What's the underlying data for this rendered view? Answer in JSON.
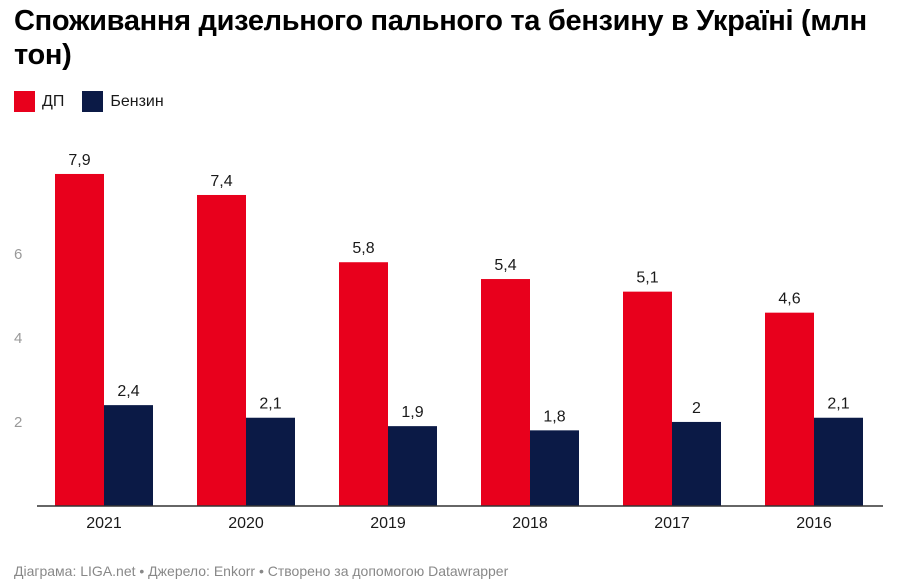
{
  "footer": "Діаграма: LIGA.net • Джерело: Enkorr • Створено за допомогою Datawrapper",
  "colors": {
    "diesel": "#e8001c",
    "petrol": "#0b1a46",
    "tick": "#999999",
    "axis": "#333333"
  },
  "chart_data": {
    "type": "bar",
    "title": "Споживання дизельного пального та бензину в Україні (млн тон)",
    "xlabel": "",
    "ylabel": "",
    "categories": [
      "2021",
      "2020",
      "2019",
      "2018",
      "2017",
      "2016"
    ],
    "series": [
      {
        "name": "ДП",
        "values": [
          7.9,
          7.4,
          5.8,
          5.4,
          5.1,
          4.6
        ],
        "labels": [
          "7,9",
          "7,4",
          "5,8",
          "5,4",
          "5,1",
          "4,6"
        ]
      },
      {
        "name": "Бензин",
        "values": [
          2.4,
          2.1,
          1.9,
          1.8,
          2,
          2.1
        ],
        "labels": [
          "2,4",
          "2,1",
          "1,9",
          "1,8",
          "2",
          "2,1"
        ]
      }
    ],
    "yticks": [
      2,
      4,
      6
    ],
    "ylim": [
      0,
      8.5
    ],
    "grid": false,
    "legend_position": "top-left"
  }
}
